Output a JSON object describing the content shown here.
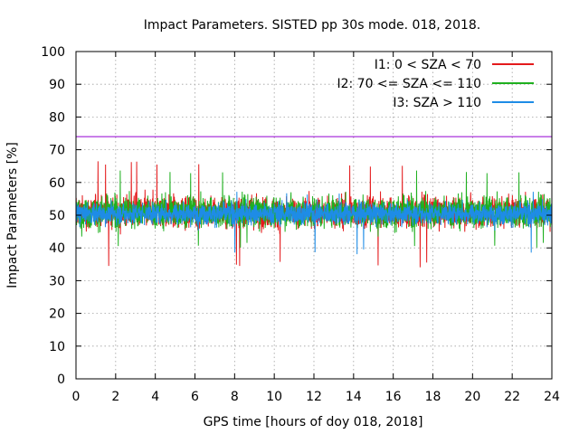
{
  "chart_data": {
    "type": "line",
    "title": "Impact Parameters. SISTED pp 30s mode. 018, 2018.",
    "xlabel": "GPS time [hours of doy 018, 2018]",
    "ylabel": "Impact Parameters [%]",
    "xlim": [
      0,
      24
    ],
    "ylim": [
      0,
      100
    ],
    "x_ticks": [
      0,
      2,
      4,
      6,
      8,
      10,
      12,
      14,
      16,
      18,
      20,
      22,
      24
    ],
    "y_ticks": [
      0,
      10,
      20,
      30,
      40,
      50,
      60,
      70,
      80,
      90,
      100
    ],
    "grid": true,
    "legend_position": "top-right",
    "reference_line": {
      "y": 74,
      "color": "#9400d3"
    },
    "series": [
      {
        "name": "I1: 0 < SZA < 70",
        "color": "#e41a1c",
        "mean": 51,
        "typical_range": [
          43,
          59
        ],
        "extremes": [
          34,
          66.5
        ]
      },
      {
        "name": "I2: 70 <= SZA <= 110",
        "color": "#1fb01f",
        "mean": 51,
        "typical_range": [
          43,
          59
        ],
        "extremes": [
          40,
          64.5
        ]
      },
      {
        "name": "I3: SZA > 110",
        "color": "#1e8ce6",
        "mean": 50.5,
        "typical_range": [
          45,
          56
        ],
        "extremes": [
          38,
          58
        ]
      }
    ]
  }
}
